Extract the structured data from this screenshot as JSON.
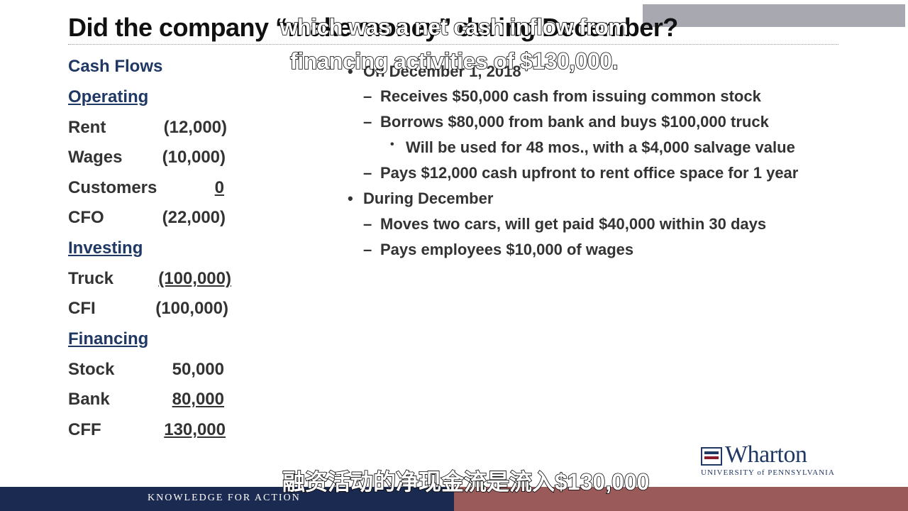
{
  "slide": {
    "title": "Did the company “make money” during December?",
    "cash_flows": {
      "heading": "Cash Flows",
      "operating": {
        "label": "Operating",
        "rows": [
          {
            "label": "Rent",
            "value": "(12,000)"
          },
          {
            "label": "Wages",
            "value": "(10,000)"
          },
          {
            "label": "Customers",
            "value": "0"
          },
          {
            "label": "CFO",
            "value": "(22,000)"
          }
        ]
      },
      "investing": {
        "label": "Investing",
        "rows": [
          {
            "label": "Truck",
            "value": "(100,000)"
          },
          {
            "label": "CFI",
            "value": "(100,000)"
          }
        ]
      },
      "financing": {
        "label": "Financing",
        "rows": [
          {
            "label": "Stock",
            "value": "50,000"
          },
          {
            "label": "Bank",
            "value": "80,000"
          },
          {
            "label": "CFF",
            "value": "130,000"
          }
        ]
      }
    },
    "bullets": {
      "b1": "On December 1, 2018",
      "b1_1": "Receives $50,000 cash from issuing common stock",
      "b1_2": "Borrows $80,000 from bank and buys $100,000 truck",
      "b1_2_1": "Will be used for 48 mos., with a $4,000 salvage value",
      "b1_3": "Pays $12,000 cash upfront to rent office space for 1 year",
      "b2": "During December",
      "b2_1": "Moves two cars, will get paid $40,000 within 30 days",
      "b2_2": "Pays employees $10,000 of wages"
    },
    "logo": {
      "wordmark": "Wharton",
      "subline": "UNIVERSITY of PENNSYLVANIA"
    },
    "tagline": "KNOWLEDGE FOR ACTION"
  },
  "subtitles": {
    "en_line1": "which was a net cash inflow from",
    "en_line2": "financing activities of $130,000.",
    "zh": "融资活动的净现金流是流入$130,000"
  },
  "colors": {
    "heading_blue": "#1f3864",
    "footer_navy": "#1b2a50",
    "footer_maroon": "#9a5a5a"
  }
}
